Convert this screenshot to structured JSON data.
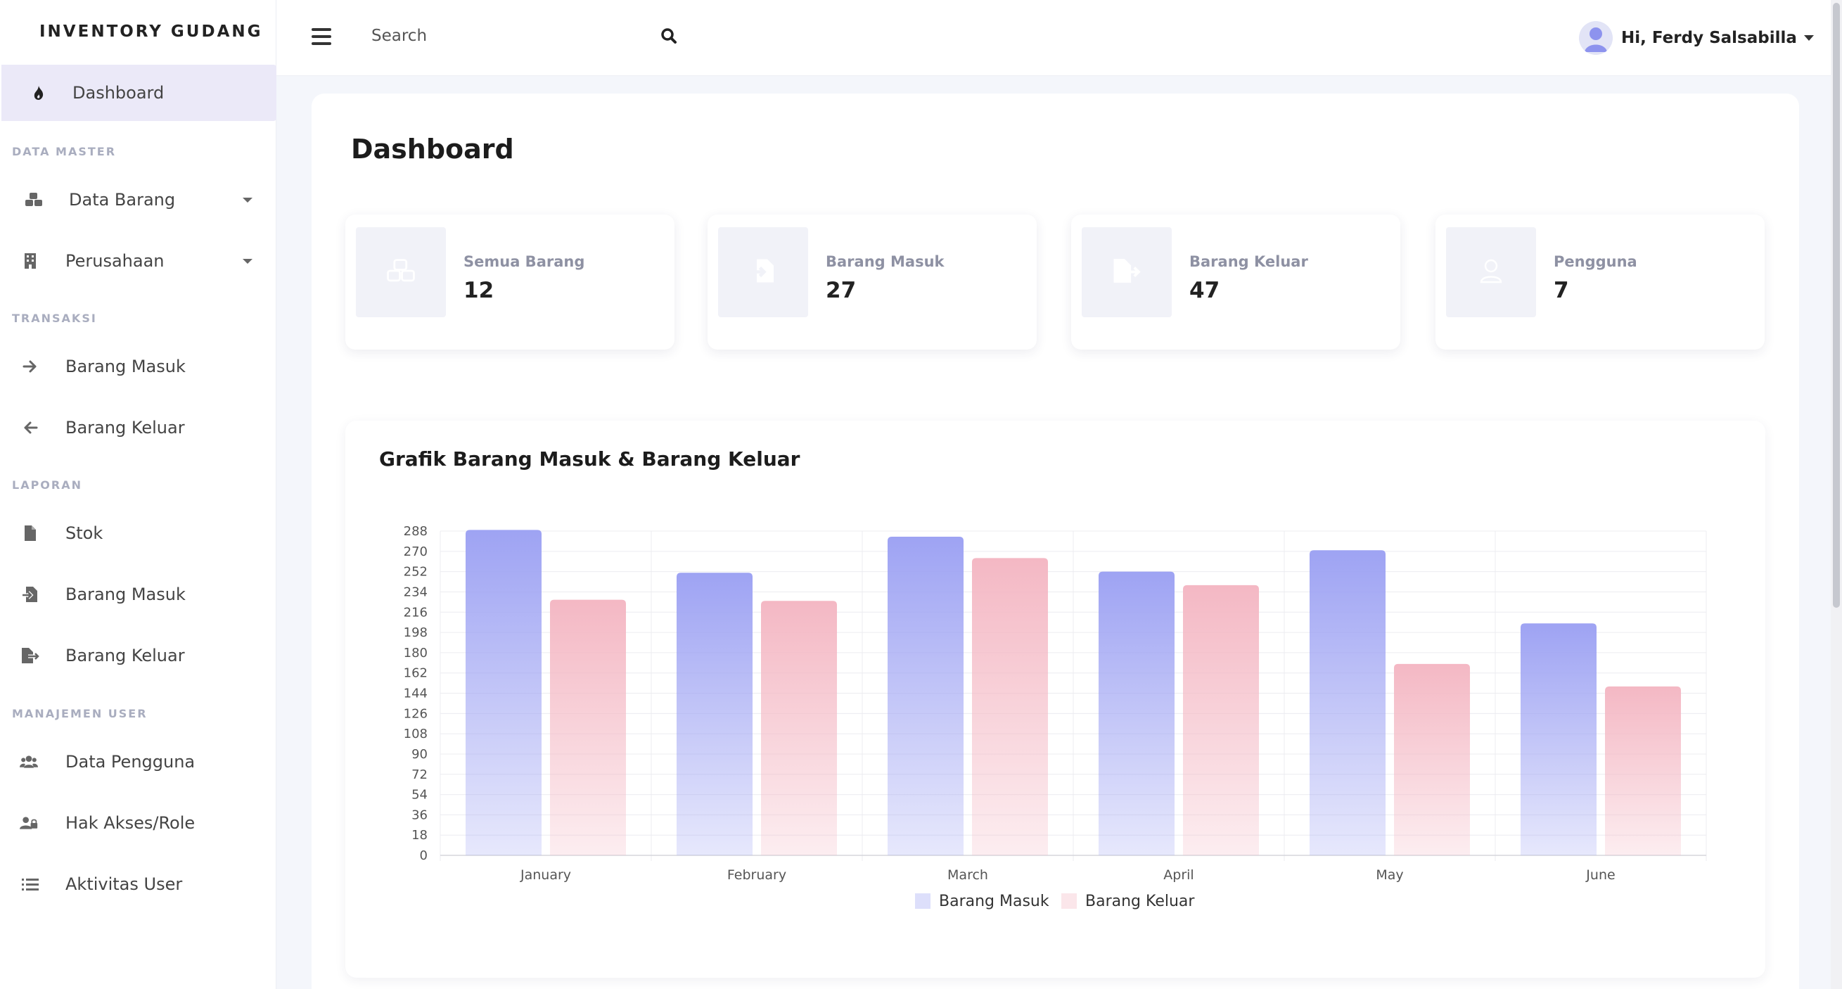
{
  "sidebar": {
    "brand": "INVENTORY GUDANG",
    "dashboard": {
      "label": "Dashboard",
      "icon": "fire-icon"
    },
    "sections": [
      {
        "title": "DATA MASTER"
      },
      {
        "title": "TRANSAKSI"
      },
      {
        "title": "LAPORAN"
      },
      {
        "title": "MANAJEMEN USER"
      }
    ],
    "items": [
      {
        "label": "Data Barang",
        "icon": "cubes-icon",
        "has_dropdown": true
      },
      {
        "label": "Perusahaan",
        "icon": "building-icon",
        "has_dropdown": true
      },
      {
        "label": "Barang Masuk",
        "icon": "arrow-right-icon"
      },
      {
        "label": "Barang Keluar",
        "icon": "arrow-left-icon"
      },
      {
        "label": "Stok",
        "icon": "file-icon"
      },
      {
        "label": "Barang Masuk",
        "icon": "file-import-icon"
      },
      {
        "label": "Barang Keluar",
        "icon": "file-export-icon"
      },
      {
        "label": "Data Pengguna",
        "icon": "users-icon"
      },
      {
        "label": "Hak Akses/Role",
        "icon": "user-lock-icon"
      },
      {
        "label": "Aktivitas User",
        "icon": "list-icon"
      }
    ]
  },
  "topbar": {
    "search_placeholder": "Search",
    "user_greeting": "Hi, Ferdy Salsabilla"
  },
  "main": {
    "title": "Dashboard",
    "stats": [
      {
        "label": "Semua Barang",
        "value": "12",
        "icon": "cubes-icon"
      },
      {
        "label": "Barang Masuk",
        "value": "27",
        "icon": "file-import-icon"
      },
      {
        "label": "Barang Keluar",
        "value": "47",
        "icon": "file-export-icon"
      },
      {
        "label": "Pengguna",
        "value": "7",
        "icon": "user-icon"
      }
    ],
    "chart_title": "Grafik Barang Masuk & Barang Keluar"
  },
  "chart_data": {
    "type": "bar",
    "title": "Grafik Barang Masuk & Barang Keluar",
    "categories": [
      "January",
      "February",
      "March",
      "April",
      "May",
      "June"
    ],
    "series": [
      {
        "name": "Barang Masuk",
        "values": [
          289,
          251,
          283,
          252,
          271,
          206
        ],
        "color": "#9ea3f3"
      },
      {
        "name": "Barang Keluar",
        "values": [
          227,
          226,
          264,
          240,
          170,
          150
        ],
        "color": "#f4b8c4"
      }
    ],
    "ylim": [
      0,
      288
    ],
    "yticks": [
      "0",
      "18",
      "36",
      "54",
      "72",
      "90",
      "108",
      "126",
      "144",
      "162",
      "180",
      "198",
      "216",
      "234",
      "252",
      "270",
      "288"
    ],
    "grid": true,
    "legend": "bottom"
  }
}
